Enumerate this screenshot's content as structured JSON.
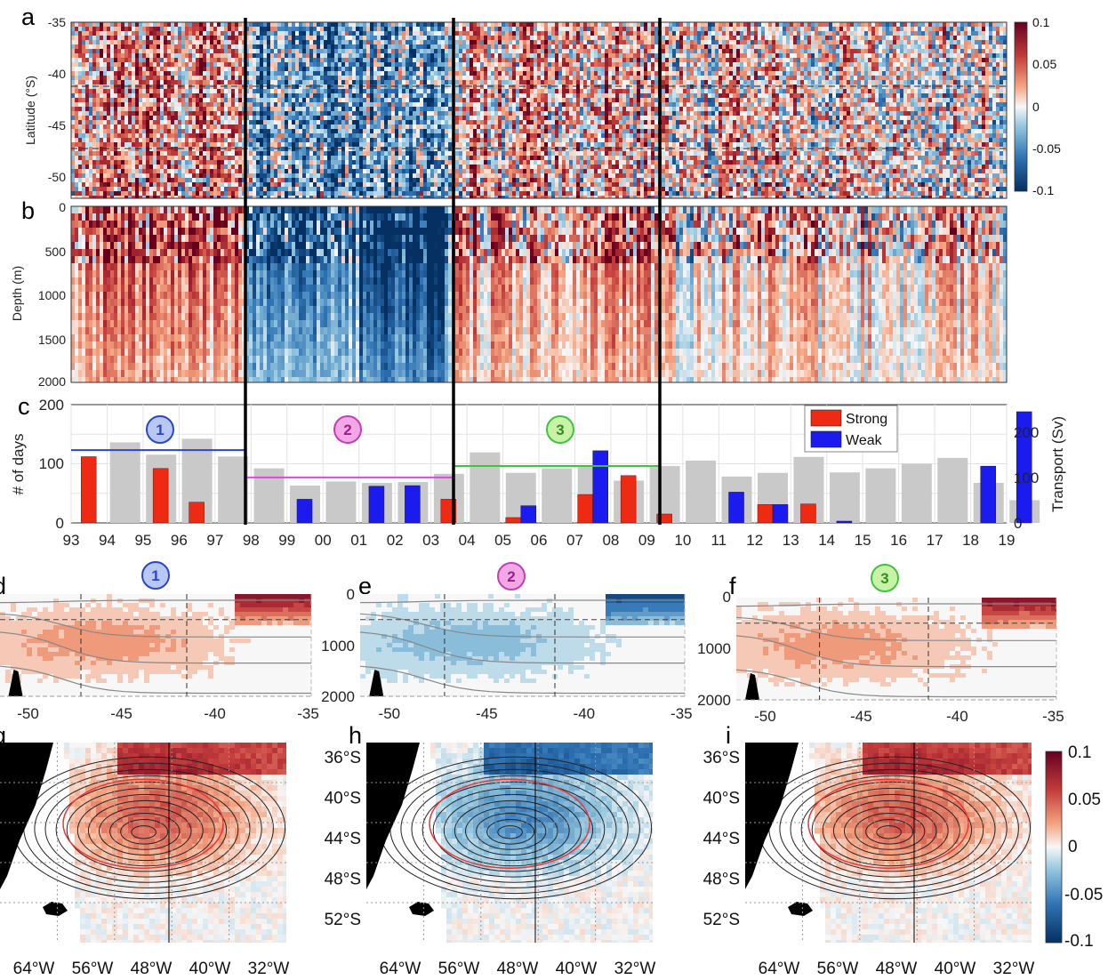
{
  "panel_labels": [
    "a",
    "b",
    "c",
    "d",
    "e",
    "f",
    "g",
    "h",
    "i"
  ],
  "colors": {
    "strong": "#ee2a12",
    "weak": "#1b1bef",
    "transport": "#c9c9c9",
    "period1": "#2a46c8",
    "period2": "#d64fd6",
    "period3": "#3ec43e",
    "cmap_pos": "#67001f",
    "cmap_neg": "#053061"
  },
  "panel_a": {
    "ylabel": "Latitude (°S)",
    "yticks": [
      "-35",
      "-40",
      "-45",
      "-50"
    ]
  },
  "panel_b": {
    "ylabel": "Depth (m)",
    "yticks": [
      "0",
      "500",
      "1000",
      "1500",
      "2000"
    ]
  },
  "colorbar_top": {
    "ticks": [
      "0.1",
      "0.05",
      "0",
      "-0.05",
      "-0.1"
    ]
  },
  "colorbar_bottom": {
    "ticks": [
      "0.1",
      "0.05",
      "0",
      "-0.05",
      "-0.1"
    ]
  },
  "sections": {
    "xticks": [
      "-50",
      "-45",
      "-40",
      "-35"
    ],
    "depth_ticks": [
      "0",
      "1000",
      "2000"
    ],
    "badges": [
      "1",
      "2",
      "3"
    ]
  },
  "maps": {
    "xticks": [
      "64°W",
      "56°W",
      "48°W",
      "40°W",
      "32°W"
    ],
    "yticks": [
      "36°S",
      "40°S",
      "44°S",
      "48°S",
      "52°S"
    ]
  },
  "chart_data": [
    {
      "type": "bar",
      "panel": "c",
      "ylabel": "# of days",
      "y2label": "Transport (Sv)",
      "xticks": [
        "93",
        "94",
        "95",
        "96",
        "97",
        "98",
        "99",
        "00",
        "01",
        "02",
        "03",
        "04",
        "05",
        "06",
        "07",
        "08",
        "09",
        "10",
        "11",
        "12",
        "13",
        "14",
        "15",
        "16",
        "17",
        "18",
        "19"
      ],
      "yticks": [
        "0",
        "100",
        "200"
      ],
      "y2ticks": [
        "0",
        "100",
        "200"
      ],
      "ylim": [
        0,
        200
      ],
      "y2lim": [
        0,
        260
      ],
      "legend": [
        "Strong",
        "Weak"
      ],
      "legend_position": "top-right",
      "period_badges": [
        "1",
        "2",
        "3"
      ],
      "categories": [
        "1993",
        "1994",
        "1995",
        "1996",
        "1997",
        "1998",
        "1999",
        "2000",
        "2001",
        "2002",
        "2003",
        "2004",
        "2005",
        "2006",
        "2007",
        "2008",
        "2009",
        "2010",
        "2011",
        "2012",
        "2013",
        "2014",
        "2015",
        "2016",
        "2017",
        "2018",
        "2019"
      ],
      "series": [
        {
          "name": "Strong",
          "values": [
            112,
            0,
            92,
            35,
            0,
            0,
            0,
            0,
            0,
            0,
            40,
            0,
            9,
            0,
            48,
            80,
            15,
            0,
            0,
            31,
            32,
            0,
            0,
            0,
            0,
            0,
            0
          ]
        },
        {
          "name": "Weak",
          "values": [
            0,
            0,
            0,
            0,
            0,
            0,
            40,
            0,
            62,
            63,
            0,
            0,
            29,
            0,
            122,
            0,
            0,
            0,
            52,
            31,
            0,
            3,
            0,
            0,
            0,
            96,
            188
          ]
        },
        {
          "name": "",
          "values": [
            0,
            177,
            150,
            185,
            146,
            120,
            82,
            91,
            88,
            90,
            108,
            155,
            110,
            120,
            125,
            93,
            125,
            137,
            102,
            110,
            145,
            111,
            120,
            130,
            143,
            88,
            50
          ]
        }
      ],
      "period_means_sv": [
        160,
        100,
        125
      ]
    }
  ]
}
